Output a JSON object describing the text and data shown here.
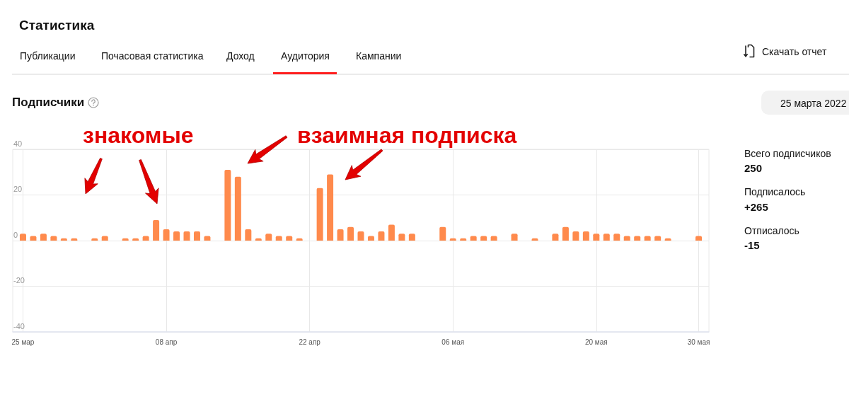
{
  "chart_data": {
    "type": "bar",
    "title": "Подписчики",
    "annotations": [
      "Статистика",
      "Публикации",
      "Почасовая статистика",
      "Доход",
      "Аудитория",
      "Кампании",
      "Скачать отчет",
      "25 марта 2022",
      "Всего подписчиков",
      "250",
      "Подписалось",
      "+265",
      "Отписалось",
      "-15",
      "знакомые",
      "взаимная подписка"
    ],
    "x": [
      "--03-25",
      "--03-26",
      "--03-27",
      "--03-28",
      "--03-29",
      "--03-30",
      "--03-31",
      "--04-01",
      "--04-02",
      "--04-03",
      "--04-04",
      "--04-05",
      "--04-06",
      "--04-07",
      "--04-08",
      "--04-09",
      "--04-10",
      "--04-11",
      "--04-12",
      "--04-13",
      "--04-14",
      "--04-15",
      "--04-16",
      "--04-17",
      "--04-18",
      "--04-19",
      "--04-20",
      "--04-21",
      "--04-22",
      "--04-23",
      "--04-24",
      "--04-25",
      "--04-26",
      "--04-27",
      "--04-28",
      "--04-29",
      "--04-30",
      "--05-01",
      "--05-02",
      "--05-03",
      "--05-04",
      "--05-05",
      "--05-06",
      "--05-07",
      "--05-08",
      "--05-09",
      "--05-10",
      "--05-11",
      "--05-12",
      "--05-13",
      "--05-14",
      "--05-15",
      "--05-16",
      "--05-17",
      "--05-18",
      "--05-19",
      "--05-20",
      "--05-21",
      "--05-22",
      "--05-23",
      "--05-24",
      "--05-25",
      "--05-26",
      "--05-27",
      "--05-28",
      "--05-29",
      "--05-30"
    ],
    "values": [
      3,
      2,
      3,
      2,
      1,
      1,
      0,
      1,
      2,
      0,
      1,
      1,
      2,
      9,
      5,
      4,
      4,
      4,
      2,
      0,
      31,
      28,
      5,
      1,
      3,
      2,
      2,
      1,
      0,
      23,
      29,
      5,
      6,
      4,
      2,
      4,
      7,
      3,
      3,
      0,
      0,
      6,
      1,
      1,
      2,
      2,
      2,
      0,
      3,
      0,
      1,
      0,
      3,
      6,
      4,
      4,
      3,
      3,
      3,
      2,
      2,
      2,
      2,
      1,
      0,
      0,
      2
    ],
    "color": "#ff8a4c",
    "xlim": [
      "--03-24",
      "--05-31"
    ],
    "xticks": [
      {
        "value": "--03-25",
        "label": "25 мар"
      },
      {
        "value": "--04-08",
        "label": "08 апр"
      },
      {
        "value": "--04-22",
        "label": "22 апр"
      },
      {
        "value": "--05-06",
        "label": "06 мая"
      },
      {
        "value": "--05-20",
        "label": "20 мая"
      },
      {
        "value": "--05-30",
        "label": "30 мая"
      }
    ],
    "ylim": [
      -40,
      40
    ],
    "yticks": [
      -40,
      -20,
      0,
      20,
      40
    ],
    "grid": true
  }
}
